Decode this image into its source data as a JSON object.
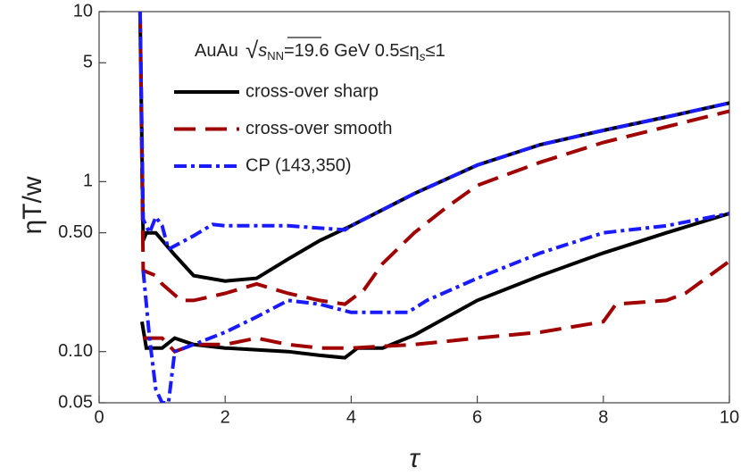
{
  "chart_data": {
    "type": "line",
    "annotation": [
      "AuAu",
      "√",
      "s",
      "NN",
      "=19.6 GeV 0.5≤η",
      "s",
      "≤1"
    ],
    "xlabel": "τ",
    "ylabel": "ηT/w",
    "xlim": [
      0,
      10
    ],
    "ylim": [
      0.05,
      10
    ],
    "log_y": true,
    "xticks": [
      0,
      2,
      4,
      6,
      8,
      10
    ],
    "yticks": [
      0.05,
      {
        "value": 0.1,
        "label": "0.10"
      },
      {
        "value": 0.5,
        "label": "0.50"
      },
      1,
      5,
      10
    ],
    "legend": "top",
    "series": [
      {
        "name": "cross-over sharp",
        "color": "#000000",
        "dash": "solid",
        "branches": [
          {
            "x": [
              0.65,
              0.7,
              0.75,
              0.9,
              1.2,
              1.5,
              2,
              2.5,
              3,
              3.5,
              4,
              5,
              6,
              7,
              8,
              9,
              10
            ],
            "values": [
              10,
              0.45,
              0.5,
              0.5,
              0.37,
              0.28,
              0.26,
              0.27,
              0.35,
              0.45,
              0.55,
              0.85,
              1.25,
              1.65,
              2.0,
              2.4,
              2.9
            ]
          },
          {
            "x": [
              0.68,
              0.75,
              1,
              1.2,
              1.5,
              2,
              3,
              3.5,
              3.9,
              4.1,
              4.5,
              5,
              6,
              7,
              8,
              9,
              10
            ],
            "values": [
              0.15,
              0.105,
              0.105,
              0.12,
              0.11,
              0.105,
              0.1,
              0.095,
              0.092,
              0.105,
              0.105,
              0.125,
              0.2,
              0.28,
              0.38,
              0.5,
              0.65
            ]
          }
        ]
      },
      {
        "name": "cross-over smooth",
        "color": "#a00000",
        "dash": "dashed",
        "branches": [
          {
            "x": [
              0.65,
              0.7,
              0.9,
              1,
              1.3,
              1.5,
              2,
              2.5,
              3,
              3.5,
              3.9,
              4.2,
              4.5,
              5,
              5.5,
              6,
              7,
              8,
              9,
              10
            ],
            "values": [
              10,
              0.3,
              0.28,
              0.25,
              0.2,
              0.2,
              0.22,
              0.25,
              0.22,
              0.2,
              0.19,
              0.23,
              0.33,
              0.5,
              0.7,
              0.95,
              1.3,
              1.7,
              2.1,
              2.6
            ]
          },
          {
            "x": [
              0.7,
              1,
              1.2,
              1.5,
              2,
              2.5,
              3,
              3.5,
              4,
              5,
              6,
              7,
              8,
              8.2,
              9,
              9.3,
              10
            ],
            "values": [
              0.12,
              0.12,
              0.1,
              0.11,
              0.11,
              0.12,
              0.11,
              0.105,
              0.105,
              0.11,
              0.12,
              0.13,
              0.15,
              0.19,
              0.2,
              0.22,
              0.34
            ]
          }
        ]
      },
      {
        "name": "CP (143,350)",
        "color": "#1a1aff",
        "dash": "dashdot",
        "branches": [
          {
            "x": [
              0.65,
              0.7,
              0.8,
              0.9,
              1,
              1.1,
              1.5,
              1.8,
              2,
              3,
              3.9,
              4,
              5,
              6,
              7,
              8,
              9,
              10
            ],
            "values": [
              10,
              0.6,
              0.5,
              0.62,
              0.55,
              0.4,
              0.48,
              0.56,
              0.55,
              0.55,
              0.52,
              0.55,
              0.85,
              1.25,
              1.65,
              2.0,
              2.4,
              2.9
            ]
          },
          {
            "x": [
              0.7,
              0.8,
              0.9,
              1,
              1.1,
              1.2,
              1.5,
              2,
              2.5,
              3,
              3.5,
              4,
              4.9,
              5.2,
              6,
              7,
              8,
              9,
              10
            ],
            "values": [
              0.3,
              0.12,
              0.06,
              0.05,
              0.05,
              0.1,
              0.11,
              0.13,
              0.16,
              0.2,
              0.19,
              0.17,
              0.17,
              0.2,
              0.27,
              0.38,
              0.5,
              0.55,
              0.65
            ]
          }
        ]
      }
    ]
  }
}
